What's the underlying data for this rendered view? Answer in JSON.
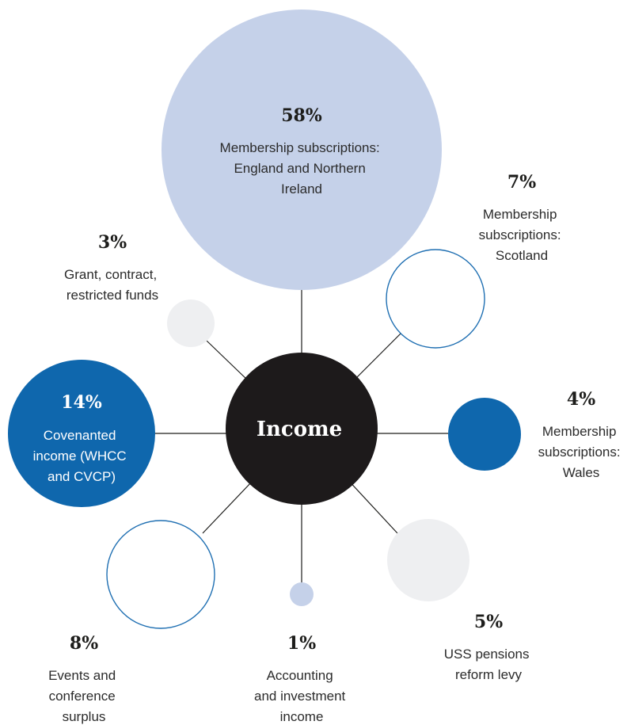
{
  "center": {
    "label": "Income"
  },
  "colors": {
    "pale_blue": "#c5d1e9",
    "dark_blue": "#0f67ad",
    "outline_blue": "#1f6fb2",
    "light_grey": "#eeeff1",
    "center": "#1d1a1b"
  },
  "segments": [
    {
      "id": "england",
      "percent": "58%",
      "value": 58,
      "label_lines": [
        "Membership subscriptions:",
        "England and Northern",
        "Ireland"
      ],
      "style": "pale-blue-filled"
    },
    {
      "id": "scotland",
      "percent": "7%",
      "value": 7,
      "label_lines": [
        "Membership",
        "subscriptions:",
        "Scotland"
      ],
      "style": "blue-outline"
    },
    {
      "id": "wales",
      "percent": "4%",
      "value": 4,
      "label_lines": [
        "Membership",
        "subscriptions:",
        "Wales"
      ],
      "style": "dark-blue-filled"
    },
    {
      "id": "uss",
      "percent": "5%",
      "value": 5,
      "label_lines": [
        "USS pensions",
        "reform levy"
      ],
      "style": "grey-filled"
    },
    {
      "id": "accounting",
      "percent": "1%",
      "value": 1,
      "label_lines": [
        "Accounting",
        "and investment",
        "income"
      ],
      "style": "pale-blue-filled"
    },
    {
      "id": "events",
      "percent": "8%",
      "value": 8,
      "label_lines": [
        "Events and",
        "conference",
        "surplus"
      ],
      "style": "blue-outline"
    },
    {
      "id": "covenanted",
      "percent": "14%",
      "value": 14,
      "label_lines": [
        "Covenanted",
        "income (WHCC",
        "and CVCP)"
      ],
      "style": "dark-blue-filled"
    },
    {
      "id": "grant",
      "percent": "3%",
      "value": 3,
      "label_lines": [
        "Grant, contract,",
        "restricted funds"
      ],
      "style": "grey-filled"
    }
  ]
}
